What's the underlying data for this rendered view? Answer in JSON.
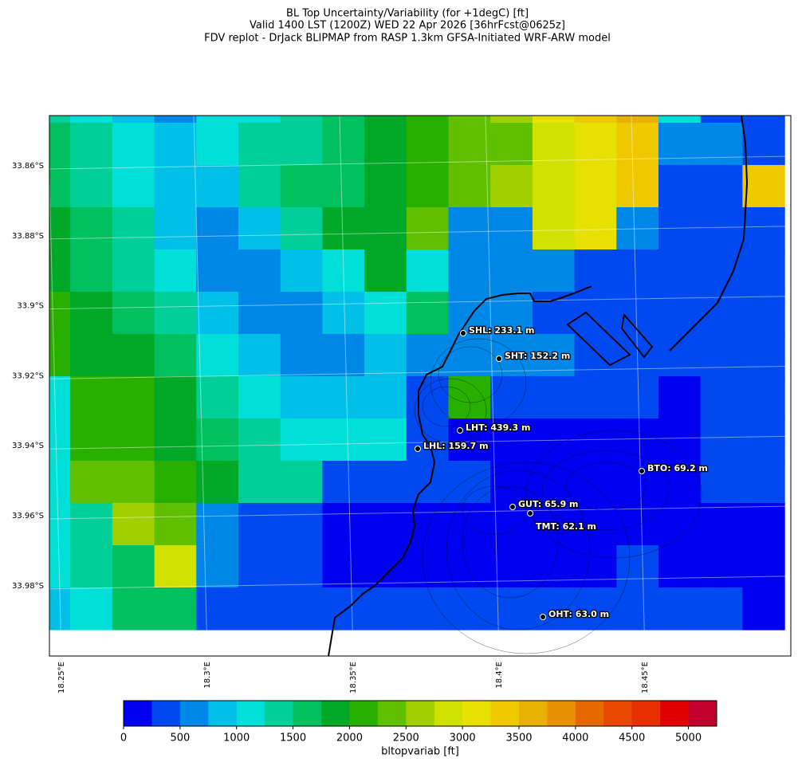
{
  "title_lines": [
    "BL Top Uncertainty/Variability (for +1degC) [ft]",
    "Valid 1400 LST (1200Z) WED 22 Apr 2026 [36hrFcst@0625z]",
    "FDV replot - DrJack BLIPMAP from RASP 1.3km GFSA-Initiated WRF-ARW model"
  ],
  "map": {
    "lat_ticks": [
      {
        "value": -33.86,
        "label": "33.86°S"
      },
      {
        "value": -33.88,
        "label": "33.88°S"
      },
      {
        "value": -33.9,
        "label": "33.9°S"
      },
      {
        "value": -33.92,
        "label": "33.92°S"
      },
      {
        "value": -33.94,
        "label": "33.94°S"
      },
      {
        "value": -33.96,
        "label": "33.96°S"
      },
      {
        "value": -33.98,
        "label": "33.98°S"
      }
    ],
    "lon_ticks": [
      {
        "value": 18.25,
        "label": "18.25°E"
      },
      {
        "value": 18.3,
        "label": "18.3°E"
      },
      {
        "value": 18.35,
        "label": "18.35°E"
      },
      {
        "value": 18.4,
        "label": "18.4°E"
      },
      {
        "value": 18.45,
        "label": "18.45°E"
      }
    ],
    "grid": [
      [
        1375,
        1125,
        875,
        625,
        1125,
        1125,
        1375,
        1625,
        1875,
        2125,
        2375,
        2625,
        3125,
        3375,
        3625,
        1125,
        375,
        375
      ],
      [
        1625,
        1375,
        1125,
        875,
        1125,
        1375,
        1375,
        1625,
        1875,
        2125,
        2375,
        2375,
        2875,
        3125,
        3375,
        625,
        625,
        375
      ],
      [
        1625,
        1375,
        1125,
        875,
        875,
        1375,
        1625,
        1625,
        1875,
        2125,
        2375,
        2625,
        2875,
        3125,
        3375,
        375,
        375,
        3375
      ],
      [
        1875,
        1625,
        1375,
        875,
        625,
        875,
        1375,
        1875,
        1875,
        2375,
        625,
        625,
        2875,
        3125,
        625,
        375,
        375,
        375
      ],
      [
        1875,
        1625,
        1375,
        1125,
        625,
        625,
        875,
        1125,
        1875,
        1125,
        625,
        625,
        625,
        375,
        375,
        375,
        375,
        375
      ],
      [
        2125,
        1875,
        1625,
        1375,
        875,
        625,
        625,
        875,
        1125,
        1625,
        625,
        625,
        375,
        375,
        375,
        375,
        375,
        375
      ],
      [
        2125,
        1875,
        1875,
        1625,
        1125,
        875,
        625,
        625,
        875,
        625,
        625,
        625,
        625,
        375,
        375,
        375,
        375,
        375
      ],
      [
        1125,
        2125,
        2125,
        1875,
        1375,
        1125,
        875,
        875,
        875,
        375,
        2125,
        375,
        375,
        375,
        375,
        125,
        375,
        375
      ],
      [
        1125,
        2125,
        2125,
        1875,
        1625,
        1375,
        1125,
        1125,
        1125,
        375,
        125,
        125,
        125,
        125,
        125,
        125,
        375,
        375
      ],
      [
        1125,
        2375,
        2375,
        2125,
        1875,
        1375,
        1375,
        375,
        375,
        375,
        375,
        125,
        125,
        125,
        125,
        125,
        375,
        375
      ],
      [
        1125,
        1375,
        2625,
        2375,
        625,
        375,
        375,
        125,
        125,
        125,
        125,
        125,
        125,
        125,
        125,
        125,
        125,
        125
      ],
      [
        1125,
        1375,
        1625,
        2875,
        625,
        375,
        375,
        125,
        125,
        125,
        125,
        125,
        125,
        125,
        375,
        125,
        125,
        125
      ],
      [
        875,
        1125,
        1625,
        1625,
        375,
        375,
        375,
        375,
        375,
        375,
        375,
        375,
        375,
        375,
        375,
        375,
        375,
        125
      ]
    ],
    "stations": [
      "SHL: 233.1 m",
      "SHT: 152.2 m",
      "LHT: 439.3 m",
      "LHL: 159.7 m",
      "BTO: 69.2 m",
      "GUT: 65.9 m",
      "TMT: 62.1 m",
      "OHT: 63.0 m"
    ]
  },
  "colorbar": {
    "label": "bltopvariab [ft]",
    "levels": [
      0,
      250,
      500,
      750,
      1000,
      1250,
      1500,
      1750,
      2000,
      2250,
      2500,
      2750,
      3000,
      3250,
      3500,
      3750,
      4000,
      4250,
      4500,
      4750,
      5000,
      5250
    ],
    "colors": [
      "#0000f0",
      "#0048f0",
      "#0088e8",
      "#00c0e8",
      "#00e0d8",
      "#00d098",
      "#00c060",
      "#00a828",
      "#28b000",
      "#60c000",
      "#a0d000",
      "#d0e000",
      "#e8e000",
      "#f0c800",
      "#e8b000",
      "#e89000",
      "#e86800",
      "#e84800",
      "#e83000",
      "#e00000",
      "#c00028"
    ],
    "ticks": [
      0,
      500,
      1000,
      1500,
      2000,
      2500,
      3000,
      3500,
      4000,
      4500,
      5000
    ]
  }
}
